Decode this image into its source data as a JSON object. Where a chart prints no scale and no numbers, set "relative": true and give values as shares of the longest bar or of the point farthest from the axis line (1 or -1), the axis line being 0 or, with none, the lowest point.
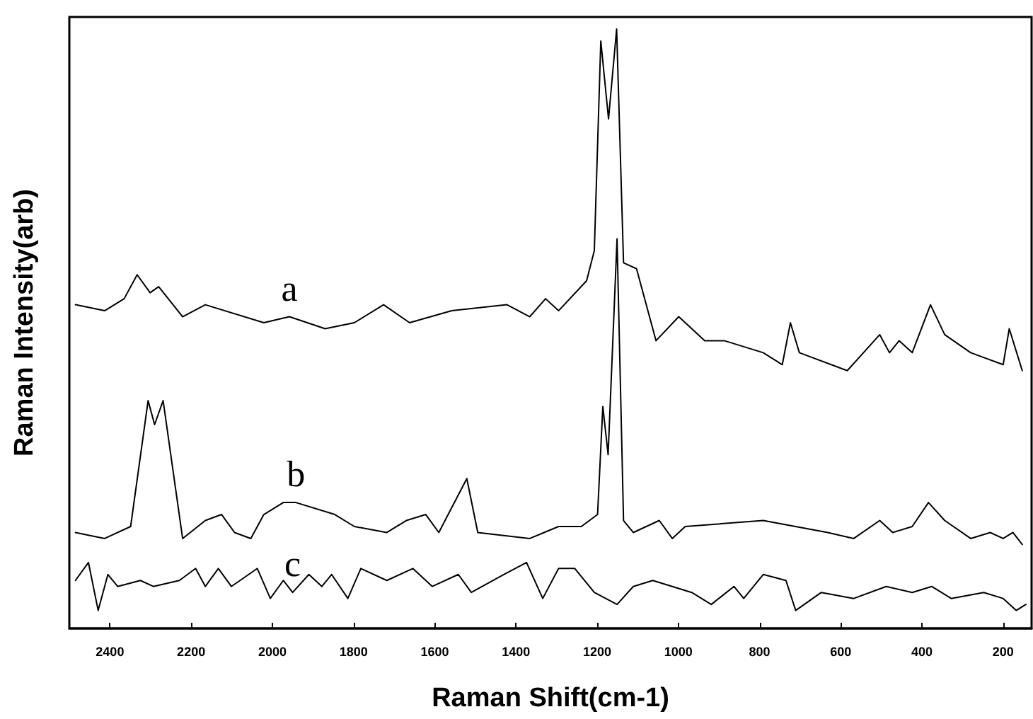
{
  "chart_data": {
    "type": "line",
    "xlabel": "Raman Shift(cm-1)",
    "ylabel": "Raman Intensity(arb)",
    "relative": true,
    "legend": false,
    "grid": false,
    "marker": "none",
    "line_style": "solid",
    "xlim": [
      2500,
      130
    ],
    "xticks": [
      2400,
      2200,
      2000,
      1800,
      1600,
      1400,
      1200,
      1000,
      800,
      600,
      400,
      200
    ],
    "series": [
      {
        "name": "a",
        "color": "#000000",
        "x": [
          2485,
          2413,
          2365,
          2333,
          2301,
          2280,
          2221,
          2165,
          2021,
          1958,
          1870,
          1798,
          1726,
          1662,
          1558,
          1422,
          1366,
          1327,
          1295,
          1226,
          1207,
          1191,
          1172,
          1152,
          1135,
          1103,
          1055,
          999,
          935,
          887,
          791,
          744,
          724,
          702,
          584,
          504,
          480,
          456,
          424,
          379,
          344,
          280,
          200,
          185,
          153
        ],
        "values": [
          0.54,
          0.53,
          0.55,
          0.59,
          0.56,
          0.57,
          0.52,
          0.54,
          0.51,
          0.52,
          0.5,
          0.51,
          0.54,
          0.51,
          0.53,
          0.54,
          0.52,
          0.55,
          0.53,
          0.58,
          0.63,
          0.98,
          0.85,
          1.0,
          0.61,
          0.6,
          0.48,
          0.52,
          0.48,
          0.48,
          0.46,
          0.44,
          0.51,
          0.46,
          0.43,
          0.49,
          0.46,
          0.48,
          0.46,
          0.54,
          0.49,
          0.46,
          0.44,
          0.5,
          0.43
        ]
      },
      {
        "name": "b",
        "color": "#000000",
        "x": [
          2485,
          2413,
          2349,
          2306,
          2290,
          2269,
          2221,
          2165,
          2125,
          2093,
          2053,
          2021,
          1973,
          1942,
          1846,
          1798,
          1718,
          1670,
          1622,
          1590,
          1521,
          1494,
          1366,
          1295,
          1239,
          1199,
          1186,
          1173,
          1151,
          1135,
          1111,
          1047,
          1015,
          983,
          791,
          632,
          568,
          504,
          472,
          424,
          384,
          344,
          280,
          232,
          200,
          176,
          153
        ],
        "values": [
          0.16,
          0.15,
          0.17,
          0.38,
          0.34,
          0.38,
          0.15,
          0.18,
          0.19,
          0.16,
          0.15,
          0.19,
          0.21,
          0.21,
          0.19,
          0.17,
          0.16,
          0.18,
          0.19,
          0.16,
          0.25,
          0.16,
          0.15,
          0.17,
          0.17,
          0.19,
          0.37,
          0.29,
          0.65,
          0.18,
          0.16,
          0.18,
          0.15,
          0.17,
          0.18,
          0.16,
          0.15,
          0.18,
          0.16,
          0.17,
          0.21,
          0.18,
          0.15,
          0.16,
          0.15,
          0.16,
          0.14
        ]
      },
      {
        "name": "c",
        "color": "#000000",
        "x": [
          2485,
          2453,
          2429,
          2405,
          2381,
          2325,
          2293,
          2229,
          2189,
          2165,
          2133,
          2101,
          2037,
          2005,
          1973,
          1950,
          1910,
          1878,
          1854,
          1814,
          1782,
          1718,
          1654,
          1606,
          1542,
          1510,
          1430,
          1374,
          1334,
          1295,
          1255,
          1207,
          1151,
          1111,
          1063,
          967,
          919,
          863,
          839,
          791,
          735,
          711,
          648,
          568,
          488,
          424,
          376,
          328,
          248,
          200,
          168,
          144
        ],
        "values": [
          0.08,
          0.11,
          0.03,
          0.09,
          0.07,
          0.08,
          0.07,
          0.08,
          0.1,
          0.07,
          0.1,
          0.07,
          0.1,
          0.05,
          0.08,
          0.06,
          0.09,
          0.07,
          0.09,
          0.05,
          0.1,
          0.08,
          0.1,
          0.07,
          0.09,
          0.06,
          0.09,
          0.11,
          0.05,
          0.1,
          0.1,
          0.06,
          0.04,
          0.07,
          0.08,
          0.06,
          0.04,
          0.07,
          0.05,
          0.09,
          0.08,
          0.03,
          0.06,
          0.05,
          0.07,
          0.06,
          0.07,
          0.05,
          0.06,
          0.05,
          0.03,
          0.04
        ]
      }
    ]
  }
}
